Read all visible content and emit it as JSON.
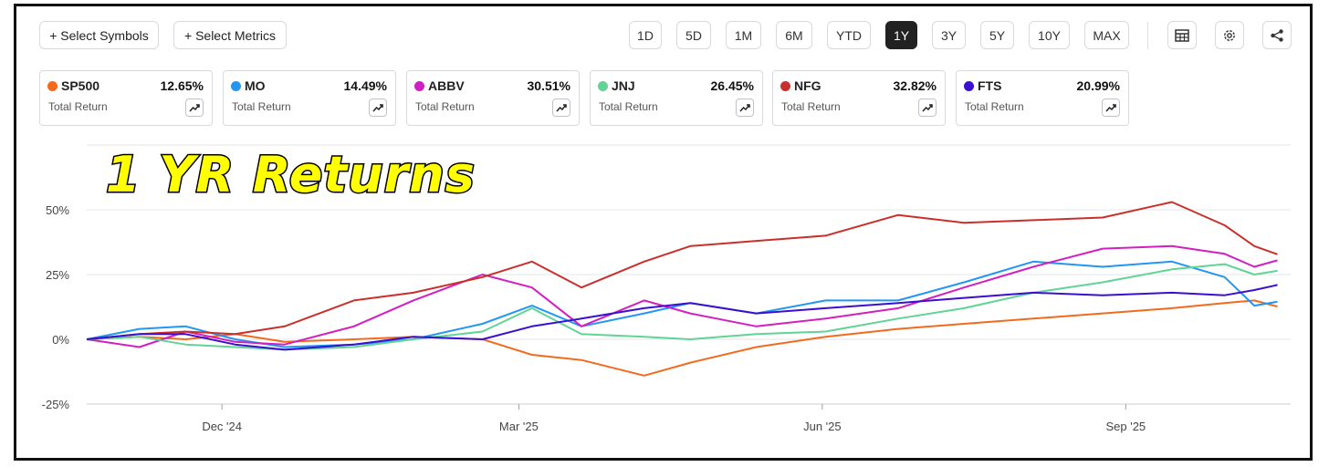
{
  "toolbar": {
    "select_symbols": "+ Select Symbols",
    "select_metrics": "+ Select Metrics",
    "ranges": [
      "1D",
      "5D",
      "1M",
      "6M",
      "YTD",
      "1Y",
      "3Y",
      "5Y",
      "10Y",
      "MAX"
    ],
    "active_range": "1Y",
    "icons": [
      "table-icon",
      "gear-icon",
      "share-icon"
    ]
  },
  "overlay_title": "1 YR Returns",
  "cards": [
    {
      "symbol": "SP500",
      "value": "12.65%",
      "label": "Total Return",
      "color": "#f26b1d"
    },
    {
      "symbol": "MO",
      "value": "14.49%",
      "label": "Total Return",
      "color": "#2196f3"
    },
    {
      "symbol": "ABBV",
      "value": "30.51%",
      "label": "Total Return",
      "color": "#d21fc1"
    },
    {
      "symbol": "JNJ",
      "value": "26.45%",
      "label": "Total Return",
      "color": "#5fd495"
    },
    {
      "symbol": "NFG",
      "value": "32.82%",
      "label": "Total Return",
      "color": "#c9302c"
    },
    {
      "symbol": "FTS",
      "value": "20.99%",
      "label": "Total Return",
      "color": "#3a0fd0"
    }
  ],
  "chart_data": {
    "type": "line",
    "title": "1 YR Returns",
    "ylabel": "",
    "xlabel": "",
    "y_ticks": [
      50,
      25,
      0,
      -25
    ],
    "y_tick_labels": [
      "50%",
      "25%",
      "0%",
      "-25%"
    ],
    "ylim": [
      -25,
      75
    ],
    "x_ticks": [
      "Dec '24",
      "Mar '25",
      "Jun '25",
      "Sep '25"
    ],
    "x_tick_dates": [
      "2024-12-01",
      "2025-03-01",
      "2025-06-01",
      "2025-09-01"
    ],
    "x_range": [
      "2024-10-21",
      "2025-10-21"
    ],
    "grid": "horizontal",
    "series": [
      {
        "name": "SP500",
        "color": "#f26b1d",
        "x": [
          "2024-10-21",
          "2024-11-06",
          "2024-11-20",
          "2024-12-05",
          "2024-12-20",
          "2025-01-10",
          "2025-01-28",
          "2025-02-18",
          "2025-03-05",
          "2025-03-20",
          "2025-04-08",
          "2025-04-22",
          "2025-05-12",
          "2025-06-02",
          "2025-06-24",
          "2025-07-14",
          "2025-08-04",
          "2025-08-25",
          "2025-09-15",
          "2025-10-01",
          "2025-10-10",
          "2025-10-17"
        ],
        "y": [
          0,
          1,
          0,
          2,
          -1,
          0,
          1,
          0,
          -6,
          -8,
          -14,
          -9,
          -3,
          1,
          4,
          6,
          8,
          10,
          12,
          14,
          15,
          12.65
        ]
      },
      {
        "name": "MO",
        "color": "#2196f3",
        "x": [
          "2024-10-21",
          "2024-11-06",
          "2024-11-20",
          "2024-12-05",
          "2024-12-20",
          "2025-01-10",
          "2025-01-28",
          "2025-02-18",
          "2025-03-05",
          "2025-03-20",
          "2025-04-08",
          "2025-04-22",
          "2025-05-12",
          "2025-06-02",
          "2025-06-24",
          "2025-07-14",
          "2025-08-04",
          "2025-08-25",
          "2025-09-15",
          "2025-10-01",
          "2025-10-10",
          "2025-10-17"
        ],
        "y": [
          0,
          4,
          5,
          0,
          -3,
          -2,
          0,
          6,
          13,
          5,
          10,
          14,
          10,
          15,
          15,
          22,
          30,
          28,
          30,
          24,
          13,
          14.49
        ]
      },
      {
        "name": "ABBV",
        "color": "#d21fc1",
        "x": [
          "2024-10-21",
          "2024-11-06",
          "2024-11-20",
          "2024-12-05",
          "2024-12-20",
          "2025-01-10",
          "2025-01-28",
          "2025-02-18",
          "2025-03-05",
          "2025-03-20",
          "2025-04-08",
          "2025-04-22",
          "2025-05-12",
          "2025-06-02",
          "2025-06-24",
          "2025-07-14",
          "2025-08-04",
          "2025-08-25",
          "2025-09-15",
          "2025-10-01",
          "2025-10-10",
          "2025-10-17"
        ],
        "y": [
          0,
          -3,
          3,
          -1,
          -2,
          5,
          15,
          25,
          20,
          5,
          15,
          10,
          5,
          8,
          12,
          20,
          28,
          35,
          36,
          33,
          28,
          30.51
        ]
      },
      {
        "name": "JNJ",
        "color": "#5fd495",
        "x": [
          "2024-10-21",
          "2024-11-06",
          "2024-11-20",
          "2024-12-05",
          "2024-12-20",
          "2025-01-10",
          "2025-01-28",
          "2025-02-18",
          "2025-03-05",
          "2025-03-20",
          "2025-04-08",
          "2025-04-22",
          "2025-05-12",
          "2025-06-02",
          "2025-06-24",
          "2025-07-14",
          "2025-08-04",
          "2025-08-25",
          "2025-09-15",
          "2025-10-01",
          "2025-10-10",
          "2025-10-17"
        ],
        "y": [
          0,
          1,
          -2,
          -3,
          -4,
          -3,
          0,
          3,
          12,
          2,
          1,
          0,
          2,
          3,
          8,
          12,
          18,
          22,
          27,
          29,
          25,
          26.45
        ]
      },
      {
        "name": "NFG",
        "color": "#c9302c",
        "x": [
          "2024-10-21",
          "2024-11-06",
          "2024-11-20",
          "2024-12-05",
          "2024-12-20",
          "2025-01-10",
          "2025-01-28",
          "2025-02-18",
          "2025-03-05",
          "2025-03-20",
          "2025-04-08",
          "2025-04-22",
          "2025-05-12",
          "2025-06-02",
          "2025-06-24",
          "2025-07-14",
          "2025-08-04",
          "2025-08-25",
          "2025-09-15",
          "2025-10-01",
          "2025-10-10",
          "2025-10-17"
        ],
        "y": [
          0,
          2,
          3,
          2,
          5,
          15,
          18,
          24,
          30,
          20,
          30,
          36,
          38,
          40,
          48,
          45,
          46,
          47,
          53,
          44,
          36,
          32.82
        ]
      },
      {
        "name": "FTS",
        "color": "#3a0fd0",
        "x": [
          "2024-10-21",
          "2024-11-06",
          "2024-11-20",
          "2024-12-05",
          "2024-12-20",
          "2025-01-10",
          "2025-01-28",
          "2025-02-18",
          "2025-03-05",
          "2025-03-20",
          "2025-04-08",
          "2025-04-22",
          "2025-05-12",
          "2025-06-02",
          "2025-06-24",
          "2025-07-14",
          "2025-08-04",
          "2025-08-25",
          "2025-09-15",
          "2025-10-01",
          "2025-10-10",
          "2025-10-17"
        ],
        "y": [
          0,
          2,
          2,
          -2,
          -4,
          -2,
          1,
          0,
          5,
          8,
          12,
          14,
          10,
          12,
          14,
          16,
          18,
          17,
          18,
          17,
          19,
          20.99
        ]
      }
    ]
  }
}
